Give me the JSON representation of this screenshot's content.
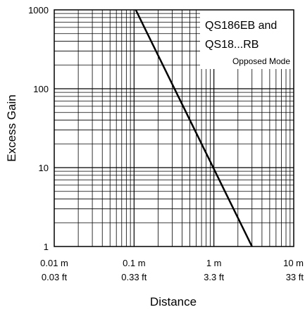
{
  "chart_data": {
    "type": "line",
    "x_scale": "log",
    "y_scale": "log",
    "xlim": [
      0.01,
      10
    ],
    "ylim": [
      1,
      1000
    ],
    "grid": true,
    "xlabel": "Distance",
    "ylabel": "Excess Gain",
    "x_tick_labels": [
      {
        "value": 0.01,
        "metric": "0.01 m",
        "imperial": "0.03 ft"
      },
      {
        "value": 0.1,
        "metric": "0.1 m",
        "imperial": "0.33 ft"
      },
      {
        "value": 1,
        "metric": "1 m",
        "imperial": "3.3 ft"
      },
      {
        "value": 10,
        "metric": "10 m",
        "imperial": "33 ft"
      }
    ],
    "y_tick_labels": [
      {
        "value": 1,
        "label": "1"
      },
      {
        "value": 10,
        "label": "10"
      },
      {
        "value": 100,
        "label": "100"
      },
      {
        "value": 1000,
        "label": "1000"
      }
    ],
    "legend": {
      "line1": "QS186EB and",
      "line2": "QS18...RB",
      "line3": "Opposed Mode"
    },
    "series": [
      {
        "x": [
          0.105,
          3.0
        ],
        "y": [
          1000,
          1
        ]
      }
    ]
  }
}
